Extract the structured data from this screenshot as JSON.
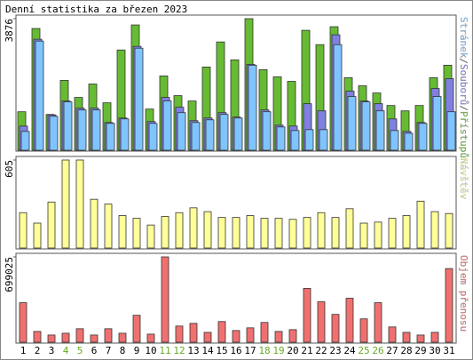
{
  "title": "Denní statistika za březen 2023",
  "chart_data": [
    {
      "type": "bar",
      "ylim": [
        0,
        3876
      ],
      "yticks": [
        3876
      ],
      "legend_separator": "/",
      "series": [
        {
          "name": "Přístupů",
          "color": "#66bb33",
          "values": [
            1134,
            3586,
            1055,
            2057,
            1556,
            1951,
            1397,
            2953,
            3691,
            1213,
            2188,
            1608,
            1450,
            2452,
            3190,
            2663,
            3876,
            2373,
            2162,
            2030,
            3533,
            3111,
            3639,
            2136,
            1898,
            1687,
            1318,
            1160,
            1318,
            2136,
            2505
          ]
        },
        {
          "name": "Souborů",
          "color": "#8080e0",
          "values": [
            712,
            3270,
            1040,
            1450,
            1239,
            1239,
            817,
            949,
            3059,
            844,
            1556,
            1266,
            870,
            949,
            1107,
            976,
            2531,
            1187,
            738,
            712,
            1371,
            1160,
            3401,
            1740,
            1450,
            1371,
            923,
            554,
            817,
            1819,
            2109
          ]
        },
        {
          "name": "Stránek",
          "color": "#80c4ff",
          "values": [
            554,
            3217,
            1000,
            1424,
            1187,
            1187,
            791,
            923,
            3006,
            791,
            1450,
            1107,
            817,
            896,
            1055,
            949,
            2505,
            1134,
            686,
            580,
            606,
            606,
            3111,
            1582,
            1424,
            1160,
            580,
            501,
            791,
            1582,
            1134
          ]
        }
      ]
    },
    {
      "type": "bar",
      "ylim": [
        0,
        605
      ],
      "yticks": [
        605
      ],
      "series": [
        {
          "name": "Návštěv",
          "color": "#ffff99",
          "values": [
            243,
            171,
            316,
            605,
            605,
            335,
            302,
            223,
            204,
            158,
            217,
            243,
            276,
            250,
            210,
            210,
            223,
            204,
            204,
            197,
            210,
            243,
            210,
            270,
            171,
            178,
            204,
            223,
            322,
            250,
            237
          ]
        }
      ]
    },
    {
      "type": "bar",
      "ylim": [
        0,
        699025
      ],
      "yticks": [
        699025
      ],
      "series": [
        {
          "name": "Objem přenosu",
          "color": "#f07070",
          "values": [
            323762,
            88300,
            58900,
            73600,
            110400,
            58900,
            110400,
            73600,
            220700,
            66200,
            699025,
            132400,
            154500,
            80900,
            169200,
            95700,
            117700,
            161900,
            88300,
            103000,
            441500,
            331100,
            228100,
            360500,
            191300,
            323800,
            125100,
            80900,
            58900,
            80900,
            603400
          ]
        }
      ],
      "categories": [
        "1",
        "2",
        "3",
        "4",
        "5",
        "6",
        "7",
        "8",
        "9",
        "10",
        "11",
        "12",
        "13",
        "14",
        "15",
        "16",
        "17",
        "18",
        "19",
        "20",
        "21",
        "22",
        "23",
        "24",
        "25",
        "26",
        "27",
        "28",
        "29",
        "30",
        "31"
      ],
      "category_colors": [
        "#000",
        "#000",
        "#000",
        "#66aa22",
        "#66aa22",
        "#000",
        "#000",
        "#000",
        "#000",
        "#000",
        "#66aa22",
        "#66aa22",
        "#000",
        "#000",
        "#000",
        "#000",
        "#000",
        "#66aa22",
        "#66aa22",
        "#000",
        "#000",
        "#000",
        "#000",
        "#000",
        "#66aa22",
        "#66aa22",
        "#000",
        "#000",
        "#000",
        "#000",
        "#000"
      ]
    }
  ]
}
